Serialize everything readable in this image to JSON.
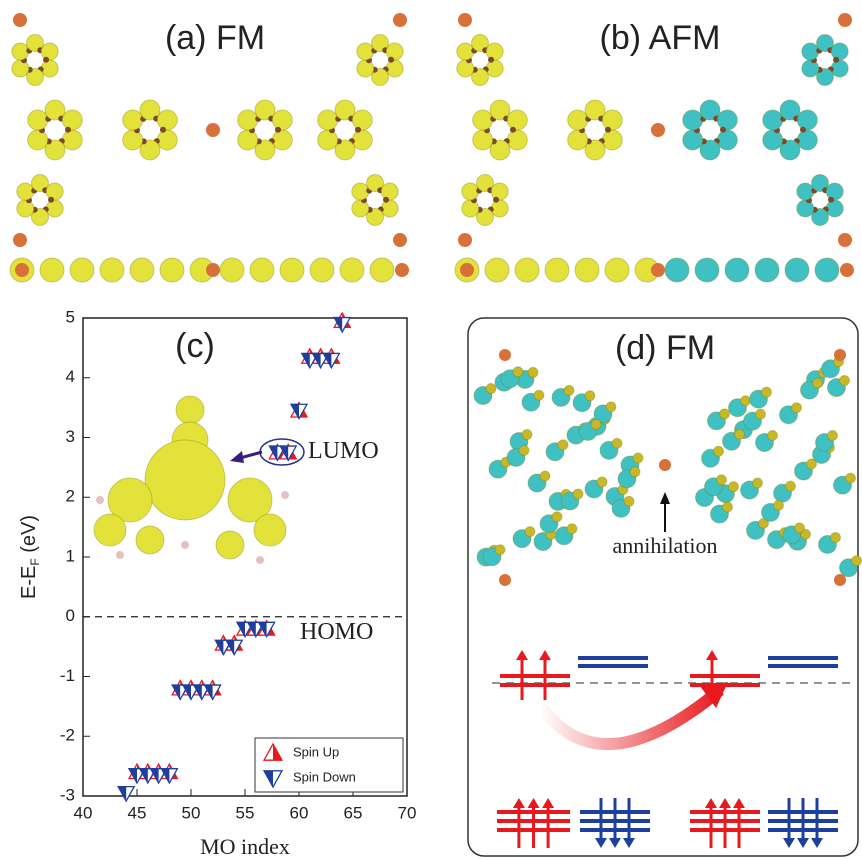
{
  "panels": {
    "a": "(a) FM",
    "b": "(b) AFM",
    "d": "(d) FM",
    "d_note": "annihilation"
  },
  "chart_data": {
    "type": "scatter",
    "title": "(c)",
    "xlabel": "MO index",
    "ylabel": {
      "main": "E-E",
      "sub": "F",
      "unit": " (eV)"
    },
    "xlim": [
      40,
      70
    ],
    "ylim": [
      -3,
      5
    ],
    "xticks": [
      40,
      45,
      50,
      55,
      60,
      65,
      70
    ],
    "yticks": [
      -3,
      -2,
      -1,
      0,
      1,
      2,
      3,
      4,
      5
    ],
    "reference_line": 0,
    "legend": "lower right",
    "annotations": [
      "LUMO",
      "HOMO"
    ],
    "series": [
      {
        "name": "Spin Up",
        "color": "#e8191e",
        "marker": "up",
        "x": [
          45,
          46,
          47,
          48,
          49,
          50,
          51,
          52,
          53,
          54,
          55,
          56,
          57,
          58,
          59,
          60,
          61,
          62,
          63,
          64
        ],
        "values": [
          -2.6,
          -2.6,
          -2.6,
          -2.6,
          -1.2,
          -1.2,
          -1.2,
          -1.2,
          -0.45,
          -0.45,
          -0.2,
          -0.2,
          -0.2,
          2.75,
          2.75,
          3.45,
          4.35,
          4.35,
          4.35,
          4.95
        ]
      },
      {
        "name": "Spin Down",
        "color": "#1f3f9e",
        "marker": "down",
        "x": [
          44,
          45,
          46,
          47,
          48,
          49,
          50,
          51,
          52,
          53,
          54,
          55,
          56,
          57,
          58,
          59,
          60,
          61,
          62,
          63,
          64
        ],
        "values": [
          -2.95,
          -2.65,
          -2.65,
          -2.65,
          -2.65,
          -1.25,
          -1.25,
          -1.25,
          -1.25,
          -0.5,
          -0.5,
          -0.2,
          -0.2,
          -0.2,
          2.75,
          2.75,
          3.45,
          4.3,
          4.3,
          4.3,
          4.9
        ]
      }
    ]
  }
}
